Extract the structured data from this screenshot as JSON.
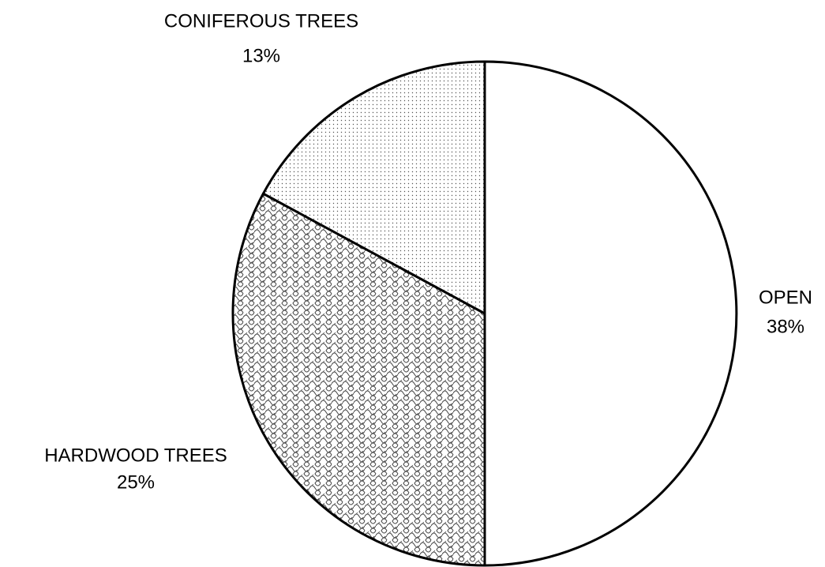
{
  "chart_data": {
    "type": "pie",
    "categories": [
      "OPEN",
      "HARDWOOD TREES",
      "CONIFEROUS TREES"
    ],
    "values": [
      38,
      25,
      13
    ],
    "value_labels": [
      "38%",
      "25%",
      "13%"
    ],
    "patterns": [
      "none",
      "scales",
      "dots"
    ],
    "start_angle": 0,
    "direction": "clockwise"
  }
}
